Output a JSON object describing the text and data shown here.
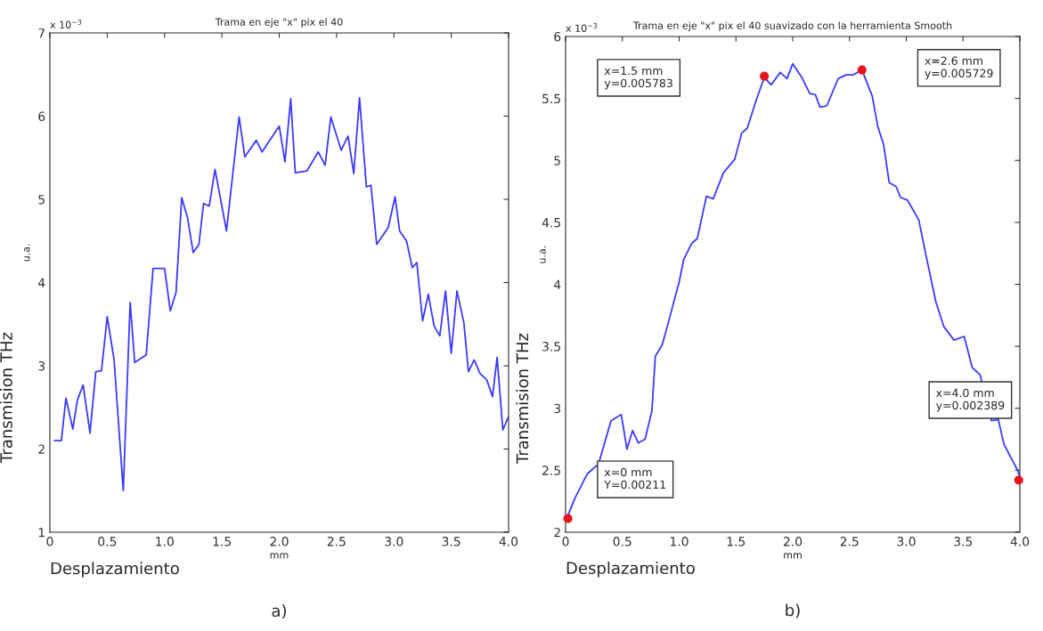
{
  "chart_data": [
    {
      "type": "line",
      "title": "Trama en eje \"x\" pix el 40",
      "xlabel": "mm",
      "ylabel": "Transmision THz",
      "annotations": [
        "x 10$^{−3}$",
        "u.a.",
        "Desplazamiento",
        "a)"
      ],
      "series": [
        {
          "color": "#3b3bff",
          "x": [
            0.04,
            0.1,
            0.14,
            0.2,
            0.24,
            0.29,
            0.35,
            0.4,
            0.45,
            0.5,
            0.56,
            0.64,
            0.7,
            0.74,
            0.84,
            0.9,
            1.0,
            1.05,
            1.1,
            1.15,
            1.2,
            1.25,
            1.3,
            1.34,
            1.39,
            1.44,
            1.54,
            1.65,
            1.7,
            1.8,
            1.85,
            2.0,
            2.05,
            2.1,
            2.14,
            2.24,
            2.34,
            2.4,
            2.45,
            2.54,
            2.6,
            2.65,
            2.7,
            2.76,
            2.8,
            2.85,
            2.95,
            3.01,
            3.05,
            3.11,
            3.16,
            3.2,
            3.25,
            3.3,
            3.35,
            3.4,
            3.45,
            3.5,
            3.55,
            3.61,
            3.65,
            3.7,
            3.75,
            3.81,
            3.86,
            3.9,
            3.95,
            4.0
          ],
          "values": [
            2.1,
            2.1,
            2.61,
            2.24,
            2.59,
            2.77,
            2.19,
            2.93,
            2.94,
            3.59,
            3.07,
            1.5,
            3.76,
            3.04,
            3.13,
            4.17,
            4.17,
            3.66,
            3.88,
            5.02,
            4.78,
            4.36,
            4.46,
            4.95,
            4.92,
            5.36,
            4.62,
            5.99,
            5.51,
            5.71,
            5.57,
            5.88,
            5.45,
            6.21,
            5.32,
            5.34,
            5.57,
            5.41,
            5.99,
            5.59,
            5.76,
            5.31,
            6.22,
            5.15,
            5.17,
            4.46,
            4.66,
            5.03,
            4.62,
            4.5,
            4.18,
            4.24,
            3.54,
            3.86,
            3.48,
            3.36,
            3.9,
            3.15,
            3.9,
            3.52,
            2.93,
            3.07,
            2.91,
            2.83,
            2.63,
            3.1,
            2.23,
            2.39
          ]
        }
      ],
      "xlim": [
        0,
        4
      ],
      "ylim": [
        1,
        7
      ],
      "xticks": [
        0,
        0.5,
        {
          "value": 1,
          "label": "1.0"
        },
        1.5,
        {
          "value": 2,
          "label": "2.0"
        },
        2.5,
        {
          "value": 3,
          "label": "3.0"
        },
        3.5,
        {
          "value": 4,
          "label": "4.0"
        }
      ],
      "yticks": [
        1,
        2,
        3,
        4,
        5,
        6,
        7
      ],
      "grid": false,
      "legend": false
    },
    {
      "type": "line",
      "title": "Trama en eje \"x\" pix el 40 suavizado con la herramienta Smooth",
      "xlabel": "mm",
      "ylabel": "Transmision THz",
      "annotations": [
        "x 10$^{−3}$",
        "u.a.",
        "Desplazamiento",
        "b)",
        "x=0 mm\nY=0.00211",
        "x=1.5 mm\ny=0.005783",
        "x=2.6 mm\ny=0.005729",
        "x=4.0 mm\ny=0.002389"
      ],
      "series": [
        {
          "type": "scatter",
          "color": "#e8141c",
          "marker": "circle",
          "x": [
            0.02,
            1.75,
            2.61,
            3.99
          ],
          "values": [
            2.11,
            5.68,
            5.73,
            2.42
          ]
        },
        {
          "color": "#3b3bff",
          "x": [
            0.01,
            0.08,
            0.19,
            0.29,
            0.4,
            0.49,
            0.54,
            0.59,
            0.64,
            0.7,
            0.76,
            0.79,
            0.85,
            0.91,
            1.0,
            1.04,
            1.11,
            1.16,
            1.24,
            1.3,
            1.39,
            1.49,
            1.55,
            1.6,
            1.68,
            1.75,
            1.81,
            1.89,
            1.95,
            2.0,
            2.08,
            2.15,
            2.2,
            2.24,
            2.3,
            2.4,
            2.47,
            2.53,
            2.61,
            2.7,
            2.75,
            2.8,
            2.85,
            2.91,
            2.95,
            3.01,
            3.11,
            3.17,
            3.26,
            3.33,
            3.42,
            3.51,
            3.58,
            3.65,
            3.75,
            3.81,
            3.86,
            3.98,
            4.0
          ],
          "values": [
            2.11,
            2.27,
            2.47,
            2.55,
            2.9,
            2.95,
            2.67,
            2.82,
            2.72,
            2.75,
            2.98,
            3.42,
            3.51,
            3.71,
            4.02,
            4.2,
            4.33,
            4.37,
            4.71,
            4.69,
            4.9,
            5.01,
            5.22,
            5.26,
            5.49,
            5.67,
            5.61,
            5.71,
            5.66,
            5.78,
            5.67,
            5.54,
            5.53,
            5.43,
            5.44,
            5.66,
            5.69,
            5.69,
            5.73,
            5.52,
            5.27,
            5.13,
            4.82,
            4.79,
            4.7,
            4.68,
            4.52,
            4.25,
            3.86,
            3.66,
            3.55,
            3.58,
            3.33,
            3.27,
            2.9,
            2.91,
            2.71,
            2.5,
            2.45
          ]
        }
      ],
      "xlim": [
        0,
        4
      ],
      "ylim": [
        2,
        6
      ],
      "xticks": [
        0,
        0.5,
        {
          "value": 1,
          "label": "1.0"
        },
        1.5,
        {
          "value": 2,
          "label": "2.0"
        },
        2.5,
        {
          "value": 3,
          "label": "3.0"
        },
        3.5,
        {
          "value": 4,
          "label": "4.0"
        }
      ],
      "yticks": [
        2,
        2.5,
        3,
        3.5,
        4,
        4.5,
        5,
        5.5,
        6
      ],
      "grid": false,
      "legend": false
    }
  ]
}
